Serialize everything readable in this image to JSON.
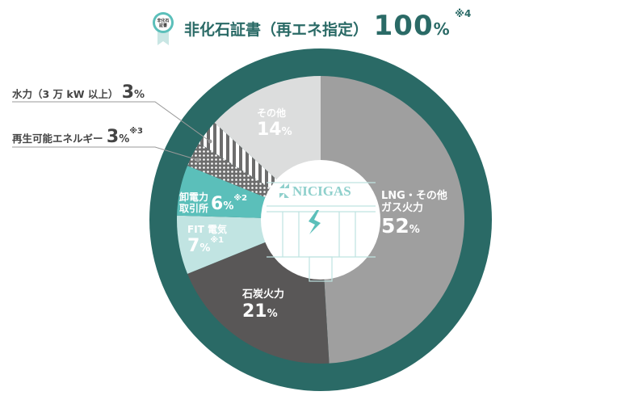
{
  "header": {
    "badge_text": "非化石証書",
    "title": "非化石証書（再エネ指定）",
    "value": "100",
    "unit": "%",
    "note": "※4"
  },
  "logo": {
    "text": "NICIGAS"
  },
  "chart_data": {
    "type": "pie",
    "style": "donut",
    "start": "top",
    "direction": "clockwise",
    "slices": [
      {
        "label": "LNG・その他ガス火力",
        "label_line1": "LNG・その他",
        "label_line2": "ガス火力",
        "value": 52,
        "value_text": "52",
        "note": "",
        "color": "#9f9f9f",
        "fill": "solid"
      },
      {
        "label": "石炭火力",
        "label_line1": "石炭火力",
        "label_line2": "",
        "value": 21,
        "value_text": "21",
        "note": "",
        "color": "#595757",
        "fill": "solid"
      },
      {
        "label": "FIT電気",
        "label_line1": "FIT 電気",
        "label_line2": "",
        "value": 7,
        "value_text": "7",
        "note": "※1",
        "color": "#c1e4e2",
        "fill": "solid"
      },
      {
        "label": "卸電力取引所",
        "label_line1": "卸電力",
        "label_line2": "取引所",
        "value": 6,
        "value_text": "6",
        "note": "※2",
        "color": "#5bbfba",
        "fill": "solid"
      },
      {
        "label": "再生可能エネルギー",
        "label_line1": "再生可能エネルギー",
        "label_line2": "",
        "value": 3,
        "value_text": "3",
        "note": "※3",
        "color": "#6d6d6d",
        "fill": "dots"
      },
      {
        "label": "水力（3万kW以上）",
        "label_line1": "水力（3 万 kW 以上）",
        "label_line2": "",
        "value": 3,
        "value_text": "3",
        "note": "",
        "color": "#6d6d6d",
        "fill": "stripes"
      },
      {
        "label": "その他",
        "label_line1": "その他",
        "label_line2": "",
        "value": 14,
        "value_text": "14",
        "note": "",
        "color": "#dcdddd",
        "fill": "solid"
      }
    ],
    "unit": "%",
    "ring_color": "#2a6a66",
    "accent_color": "#5bbfba"
  }
}
